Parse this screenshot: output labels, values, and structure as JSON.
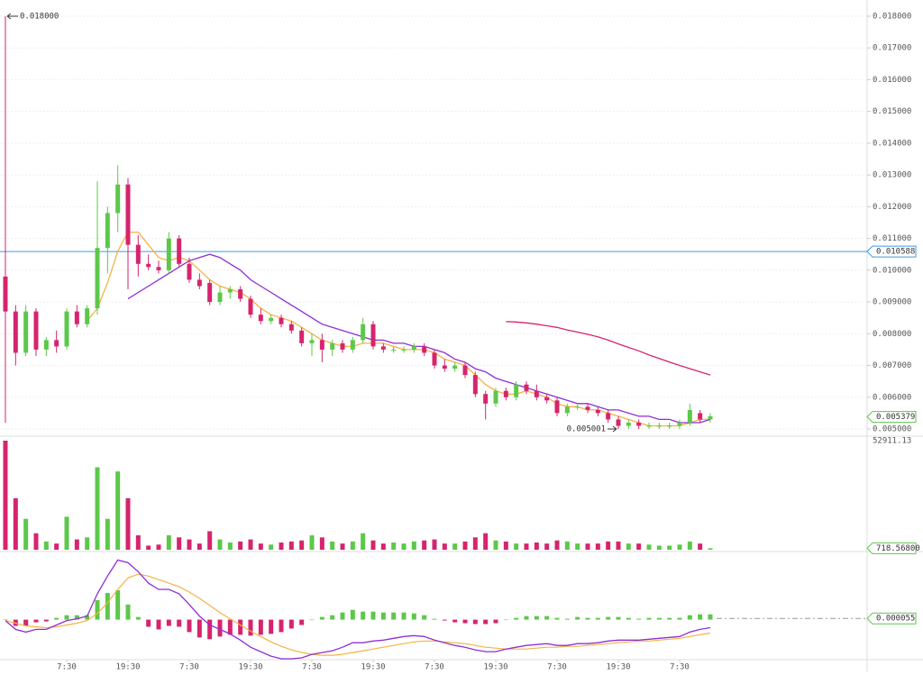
{
  "chart_data": [
    {
      "type": "candlestick",
      "open": [
        0.0098,
        0.0087,
        0.0074,
        0.0087,
        0.0075,
        0.0078,
        0.0076,
        0.0087,
        0.0083,
        0.0088,
        0.0107,
        0.0118,
        0.0127,
        0.0108,
        0.0102,
        0.0101,
        0.01,
        0.011,
        0.0102,
        0.0097,
        0.0096,
        0.009,
        0.0093,
        0.0094,
        0.0091,
        0.0086,
        0.0084,
        0.0085,
        0.0083,
        0.0081,
        0.0077,
        0.0078,
        0.0075,
        0.0077,
        0.0075,
        0.0078,
        0.0083,
        0.0076,
        0.0075,
        0.0075,
        0.0075,
        0.0076,
        0.0074,
        0.007,
        0.0069,
        0.007,
        0.0067,
        0.0061,
        0.0058,
        0.0062,
        0.006,
        0.0064,
        0.0062,
        0.006,
        0.0059,
        0.0055,
        0.0057,
        0.0057,
        0.0056,
        0.0055,
        0.0053,
        0.0051,
        0.0052,
        0.0051,
        0.0051,
        0.0051,
        0.0051,
        0.0052,
        0.0055,
        0.0053
      ],
      "high": [
        0.018,
        0.0089,
        0.0089,
        0.0088,
        0.0079,
        0.0081,
        0.0088,
        0.0089,
        0.0089,
        0.0128,
        0.012,
        0.0133,
        0.0129,
        0.0111,
        0.0105,
        0.0103,
        0.0112,
        0.0111,
        0.0104,
        0.0099,
        0.0097,
        0.0095,
        0.0095,
        0.0095,
        0.0092,
        0.0088,
        0.0086,
        0.0086,
        0.0084,
        0.0082,
        0.008,
        0.008,
        0.0078,
        0.0078,
        0.0079,
        0.0085,
        0.0084,
        0.0077,
        0.0076,
        0.0076,
        0.0077,
        0.0077,
        0.0075,
        0.0072,
        0.0071,
        0.0071,
        0.0068,
        0.0062,
        0.0063,
        0.0063,
        0.0065,
        0.0065,
        0.0064,
        0.0061,
        0.006,
        0.0058,
        0.0058,
        0.0058,
        0.0057,
        0.0056,
        0.0054,
        0.0053,
        0.0053,
        0.0052,
        0.0052,
        0.0052,
        0.0053,
        0.0058,
        0.0056,
        0.0055
      ],
      "low": [
        0.0052,
        0.007,
        0.0073,
        0.0073,
        0.0073,
        0.0074,
        0.0075,
        0.0082,
        0.0082,
        0.0086,
        0.0099,
        0.0112,
        0.0094,
        0.0098,
        0.01,
        0.0099,
        0.0099,
        0.0101,
        0.0096,
        0.0094,
        0.0089,
        0.0089,
        0.0091,
        0.009,
        0.0085,
        0.0083,
        0.0083,
        0.0082,
        0.008,
        0.0076,
        0.0073,
        0.0071,
        0.0073,
        0.0074,
        0.0074,
        0.0077,
        0.0075,
        0.0074,
        0.0074,
        0.0074,
        0.0074,
        0.0073,
        0.0069,
        0.0068,
        0.0068,
        0.0066,
        0.006,
        0.0053,
        0.0057,
        0.0059,
        0.0059,
        0.0061,
        0.0059,
        0.0058,
        0.0054,
        0.0054,
        0.0056,
        0.0055,
        0.0054,
        0.0052,
        0.005001,
        0.005,
        0.005,
        0.005,
        0.005,
        0.005,
        0.005,
        0.0051,
        0.0052,
        0.0052
      ],
      "close": [
        0.0087,
        0.0074,
        0.0087,
        0.0075,
        0.0078,
        0.0076,
        0.0087,
        0.0083,
        0.0088,
        0.0107,
        0.0118,
        0.0127,
        0.0108,
        0.0102,
        0.0101,
        0.01,
        0.011,
        0.0102,
        0.0097,
        0.0095,
        0.009,
        0.0093,
        0.0094,
        0.0091,
        0.0086,
        0.0084,
        0.0085,
        0.0083,
        0.0081,
        0.0077,
        0.0078,
        0.0075,
        0.0077,
        0.0075,
        0.0078,
        0.0083,
        0.0076,
        0.0075,
        0.0075,
        0.0075,
        0.0076,
        0.0074,
        0.007,
        0.0069,
        0.007,
        0.0067,
        0.0061,
        0.0058,
        0.0062,
        0.006,
        0.0064,
        0.0062,
        0.006,
        0.0059,
        0.0055,
        0.0057,
        0.0057,
        0.0056,
        0.0055,
        0.0053,
        0.0051,
        0.0052,
        0.0051,
        0.0051,
        0.0051,
        0.0051,
        0.0052,
        0.0056,
        0.0053,
        0.0054
      ],
      "up_color": "#5cc84a",
      "down_color": "#d6246e",
      "series": [
        {
          "color": "#f5b342",
          "values": [
            null,
            null,
            null,
            null,
            null,
            null,
            null,
            null,
            0.0084,
            0.0088,
            0.0096,
            0.0106,
            0.0112,
            0.0112,
            0.0108,
            0.0104,
            0.0103,
            0.0104,
            0.0103,
            0.01,
            0.0097,
            0.0095,
            0.0094,
            0.0093,
            0.0091,
            0.0088,
            0.0086,
            0.0085,
            0.0084,
            0.0082,
            0.008,
            0.0078,
            0.0077,
            0.0076,
            0.0076,
            0.0077,
            0.0077,
            0.0077,
            0.0076,
            0.0075,
            0.0075,
            0.0075,
            0.0074,
            0.0072,
            0.0071,
            0.007,
            0.0067,
            0.0064,
            0.0062,
            0.0061,
            0.0061,
            0.0062,
            0.0061,
            0.006,
            0.0058,
            0.0057,
            0.0057,
            0.0056,
            0.0056,
            0.0055,
            0.0054,
            0.0053,
            0.0052,
            0.0051,
            0.0051,
            0.0051,
            0.0051,
            0.0052,
            0.0053,
            0.0053
          ]
        },
        {
          "color": "#8e2fd6",
          "values": [
            null,
            null,
            null,
            null,
            null,
            null,
            null,
            null,
            null,
            null,
            null,
            null,
            0.0091,
            0.0093,
            0.0095,
            0.0097,
            0.0099,
            0.0101,
            0.0103,
            0.0104,
            0.0105,
            0.0104,
            0.0102,
            0.01,
            0.0097,
            0.0095,
            0.0093,
            0.0091,
            0.0089,
            0.0087,
            0.0085,
            0.0083,
            0.0082,
            0.0081,
            0.008,
            0.0079,
            0.0078,
            0.0078,
            0.0077,
            0.0077,
            0.0076,
            0.0076,
            0.0075,
            0.0074,
            0.0072,
            0.0071,
            0.0069,
            0.0068,
            0.0066,
            0.0065,
            0.0064,
            0.0063,
            0.0062,
            0.0061,
            0.006,
            0.0059,
            0.0058,
            0.0058,
            0.0057,
            0.0056,
            0.0056,
            0.0055,
            0.0054,
            0.0054,
            0.0053,
            0.0053,
            0.0052,
            0.0052,
            0.0052,
            0.0053
          ]
        },
        {
          "color": "#d6246e",
          "values": [
            null,
            null,
            null,
            null,
            null,
            null,
            null,
            null,
            null,
            null,
            null,
            null,
            null,
            null,
            null,
            null,
            null,
            null,
            null,
            null,
            null,
            null,
            null,
            null,
            null,
            null,
            null,
            null,
            null,
            null,
            null,
            null,
            null,
            null,
            null,
            null,
            null,
            null,
            null,
            null,
            null,
            null,
            null,
            null,
            null,
            null,
            null,
            null,
            null,
            0.00838,
            0.00837,
            0.00834,
            0.0083,
            0.00825,
            0.0082,
            0.00812,
            0.00805,
            0.00798,
            0.0079,
            0.0078,
            0.00768,
            0.00757,
            0.00746,
            0.00733,
            0.00722,
            0.00711,
            0.007,
            0.0069,
            0.0068,
            0.0067
          ]
        }
      ],
      "ylim": [
        0.00483,
        0.01851
      ],
      "yticks": [
        {
          "value": 0.005,
          "label": "0.005000"
        },
        {
          "value": 0.006,
          "label": "0.006000"
        },
        {
          "value": 0.007,
          "label": "0.007000"
        },
        {
          "value": 0.008,
          "label": "0.008000"
        },
        {
          "value": 0.009,
          "label": "0.009000"
        },
        {
          "value": 0.01,
          "label": "0.010000"
        },
        {
          "value": 0.011,
          "label": "0.011000"
        },
        {
          "value": 0.012,
          "label": "0.012000"
        },
        {
          "value": 0.013,
          "label": "0.013000"
        },
        {
          "value": 0.014,
          "label": "0.014000"
        },
        {
          "value": 0.015,
          "label": "0.015000"
        },
        {
          "value": 0.016,
          "label": "0.016000"
        },
        {
          "value": 0.017,
          "label": "0.017000"
        },
        {
          "value": 0.018,
          "label": "0.018000"
        }
      ],
      "xticks": [
        {
          "value": 6,
          "label": "7:30"
        },
        {
          "value": 12,
          "label": "19:30"
        },
        {
          "value": 18,
          "label": "7:30"
        },
        {
          "value": 24,
          "label": "19:30"
        },
        {
          "value": 30,
          "label": "7:30"
        },
        {
          "value": 36,
          "label": "19:30"
        },
        {
          "value": 42,
          "label": "7:30"
        },
        {
          "value": 48,
          "label": "19:30"
        },
        {
          "value": 54,
          "label": "7:30"
        },
        {
          "value": 60,
          "label": "19:30"
        },
        {
          "value": 66,
          "label": "7:30"
        }
      ],
      "hline": {
        "value": 0.010588,
        "color": "#3d9ae0"
      },
      "last_price": 0.005379,
      "high_marker": {
        "value": 0.018,
        "label": "0.018000"
      },
      "low_marker": {
        "value": 0.005001,
        "label": "0.005001"
      },
      "grid": true
    },
    {
      "type": "volume",
      "values": [
        52911.13,
        25000,
        15000,
        8000,
        4000,
        3000,
        16000,
        5000,
        6000,
        40000,
        15000,
        38000,
        25000,
        7000,
        2000,
        2500,
        7000,
        6000,
        5000,
        3000,
        9000,
        5000,
        3500,
        4000,
        5000,
        3000,
        2500,
        3500,
        4000,
        4500,
        7000,
        6000,
        4000,
        3000,
        4000,
        8000,
        4500,
        3000,
        3500,
        3000,
        4000,
        4500,
        5000,
        3000,
        3000,
        4000,
        6000,
        8000,
        4500,
        4000,
        3000,
        3000,
        3500,
        3000,
        4500,
        4000,
        3000,
        3000,
        3000,
        4000,
        4000,
        3000,
        3000,
        2500,
        2000,
        2000,
        2500,
        4000,
        3000,
        718.568
      ],
      "value_labels_last": "718.56800",
      "ylim": [
        0,
        52911.13
      ],
      "yticks": [
        52911.13
      ]
    },
    {
      "type": "macd",
      "macd": [
        -4e-05,
        -0.00044,
        -0.00056,
        -0.00044,
        -0.00044,
        -0.00024,
        -4e-05,
        4e-05,
        0.00016,
        0.00116,
        0.00196,
        0.00268,
        0.00256,
        0.00216,
        0.00164,
        0.00136,
        0.00136,
        0.00116,
        0.00068,
        0.00016,
        -0.00024,
        -0.00044,
        -0.00064,
        -0.00092,
        -0.00124,
        -0.00144,
        -0.00164,
        -0.00176,
        -0.00176,
        -0.00172,
        -0.00156,
        -0.00148,
        -0.0014,
        -0.00124,
        -0.00104,
        -0.00104,
        -0.00096,
        -0.00092,
        -0.00084,
        -0.00076,
        -0.00072,
        -0.00076,
        -0.00092,
        -0.00104,
        -0.00116,
        -0.00124,
        -0.00136,
        -0.00144,
        -0.00144,
        -0.00132,
        -0.00124,
        -0.00116,
        -0.00112,
        -0.00108,
        -0.00116,
        -0.00116,
        -0.00108,
        -0.00108,
        -0.00104,
        -0.00096,
        -0.00092,
        -0.00092,
        -0.00092,
        -0.00088,
        -0.00084,
        -0.0008,
        -0.00076,
        -0.00056,
        -0.00044,
        -0.00036
      ],
      "signal": [
        -4e-05,
        -0.00016,
        -0.00028,
        -0.00032,
        -0.00036,
        -0.00032,
        -0.00024,
        -0.00016,
        -4e-05,
        0.00028,
        0.00076,
        0.00136,
        0.00188,
        0.00204,
        0.00196,
        0.0018,
        0.00164,
        0.00148,
        0.00124,
        0.00096,
        0.00064,
        0.00032,
        4e-05,
        -0.00024,
        -0.00052,
        -0.00076,
        -0.001,
        -0.0012,
        -0.00136,
        -0.00148,
        -0.00156,
        -0.0016,
        -0.0016,
        -0.00156,
        -0.00148,
        -0.0014,
        -0.00132,
        -0.00124,
        -0.00116,
        -0.00108,
        -0.001,
        -0.00096,
        -0.00096,
        -0.001,
        -0.00104,
        -0.00108,
        -0.00116,
        -0.00124,
        -0.00128,
        -0.00132,
        -0.00132,
        -0.00132,
        -0.00128,
        -0.00124,
        -0.00124,
        -0.0012,
        -0.0012,
        -0.00116,
        -0.00112,
        -0.00108,
        -0.00104,
        -0.001,
        -0.00096,
        -0.00096,
        -0.00092,
        -0.00088,
        -0.00084,
        -0.00076,
        -0.00068,
        -0.0006
      ],
      "histogram": [
        0,
        -0.00028,
        -0.00028,
        -0.00012,
        -8e-05,
        8e-05,
        0.0002,
        0.0002,
        0.0002,
        0.00088,
        0.0012,
        0.00132,
        0.00068,
        0.00012,
        -0.00032,
        -0.00044,
        -0.00028,
        -0.00032,
        -0.00056,
        -0.0008,
        -0.00088,
        -0.00076,
        -0.00068,
        -0.00068,
        -0.00072,
        -0.00068,
        -0.00064,
        -0.00056,
        -0.0004,
        -0.00024,
        0,
        0.00012,
        0.0002,
        0.00032,
        0.00044,
        0.00036,
        0.00036,
        0.00032,
        0.00032,
        0.00032,
        0.00028,
        0.0002,
        4e-05,
        -4e-05,
        -0.00012,
        -0.00016,
        -0.0002,
        -0.0002,
        -0.00016,
        0,
        8e-05,
        0.00016,
        0.00016,
        0.00016,
        8e-05,
        4e-05,
        0.00012,
        8e-05,
        8e-05,
        0.00012,
        0.00012,
        8e-05,
        4e-05,
        8e-05,
        8e-05,
        8e-05,
        8e-05,
        0.0002,
        0.00024,
        0.00024
      ],
      "macd_color": "#8e2fd6",
      "signal_color": "#f5b342",
      "last_value": 5.5e-05,
      "ylim": [
        -0.0018,
        0.0029
      ]
    }
  ]
}
